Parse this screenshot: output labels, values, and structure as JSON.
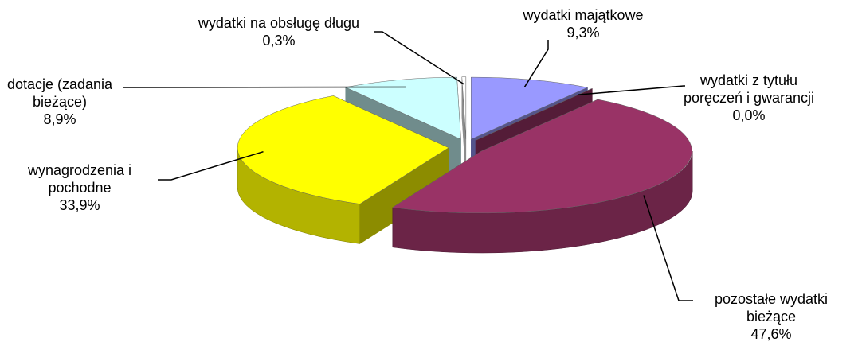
{
  "chart_data": {
    "type": "pie3d",
    "categories": [
      "wydatki majątkowe",
      "wydatki z tytułu poręczeń i gwarancji",
      "pozostałe wydatki bieżące",
      "wynagrodzenia i pochodne",
      "dotacje (zadania bieżące)",
      "wydatki na obsługę długu"
    ],
    "values": [
      9.3,
      0.0,
      47.6,
      33.9,
      8.9,
      0.3
    ],
    "value_labels": [
      "9,3%",
      "0,0%",
      "47,6%",
      "33,9%",
      "8,9%",
      "0,3%"
    ],
    "colors": [
      "#9999ff",
      "#993366",
      "#993366",
      "#ffff00",
      "#ccffff",
      "#ffffff"
    ]
  }
}
